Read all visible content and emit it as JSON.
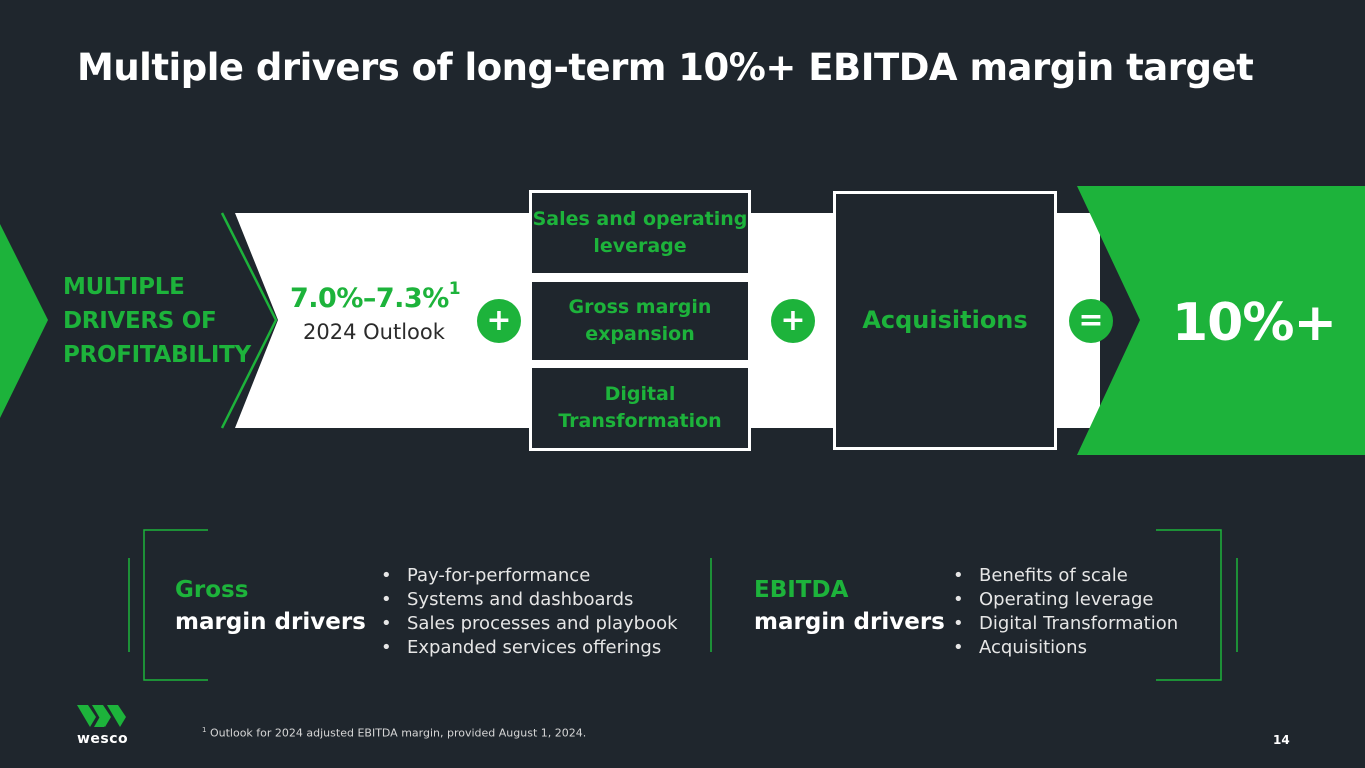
{
  "title": "Multiple drivers of long-term 10%+ EBITDA margin target",
  "band": {
    "label": "MULTIPLE DRIVERS OF PROFITABILITY",
    "outlook_value": "7.0%–7.3%",
    "outlook_footnote_ref": "1",
    "outlook_label": "2024 Outlook",
    "plus_1": "+",
    "plus_2": "+",
    "equals": "=",
    "boxes": [
      {
        "label": "Sales and operating leverage"
      },
      {
        "label": "Gross margin expansion"
      },
      {
        "label": "Digital Transformation"
      }
    ],
    "acquisitions": "Acquisitions",
    "target": "10%+"
  },
  "drivers": {
    "gross": {
      "title_1": "Gross",
      "title_2": "margin drivers",
      "items": [
        "Pay-for-performance",
        "Systems and dashboards",
        "Sales processes and playbook",
        "Expanded services offerings"
      ]
    },
    "ebitda": {
      "title_1": "EBITDA",
      "title_2": "margin drivers",
      "items": [
        "Benefits of scale",
        "Operating leverage",
        "Digital Transformation",
        "Acquisitions"
      ]
    }
  },
  "footnote": {
    "ref": "1",
    "text": "Outlook for 2024 adjusted EBITDA margin, provided August 1, 2024."
  },
  "page_number": "14",
  "logo": {
    "text": "wesco"
  },
  "colors": {
    "background": "#1f262d",
    "accent": "#1db33b",
    "band": "#ffffff"
  }
}
